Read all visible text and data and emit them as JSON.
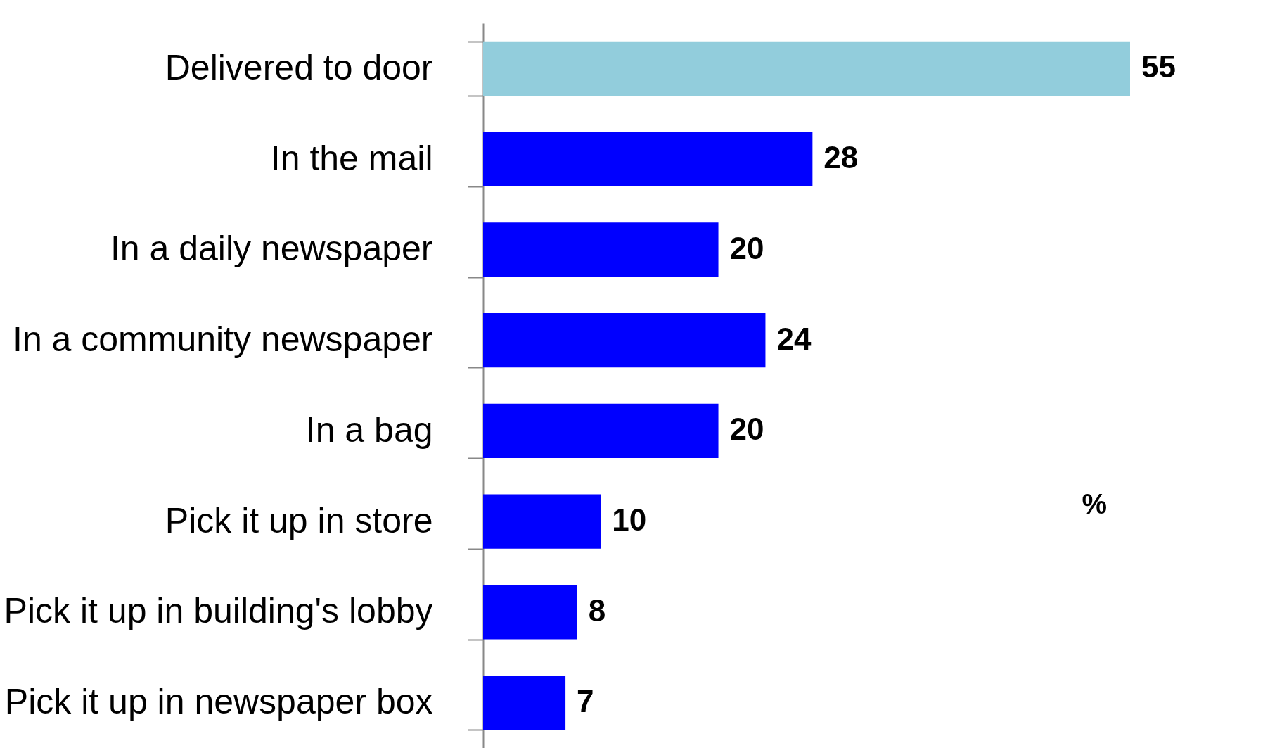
{
  "chart_data": {
    "type": "bar",
    "orientation": "horizontal",
    "categories": [
      "Delivered to door",
      "In the mail",
      "In a daily newspaper",
      "In a community newspaper",
      "In a bag",
      "Pick it up in store",
      "Pick it up in building's lobby",
      "Pick it up in newspaper box"
    ],
    "values": [
      55,
      28,
      20,
      24,
      20,
      10,
      8,
      7
    ],
    "colors": [
      "#92cddc",
      "#0000ff",
      "#0000ff",
      "#0000ff",
      "#0000ff",
      "#0000ff",
      "#0000ff",
      "#0000ff"
    ],
    "data_labels": true,
    "tick_labels": "y",
    "grid": false,
    "annotations": [
      "%"
    ]
  }
}
